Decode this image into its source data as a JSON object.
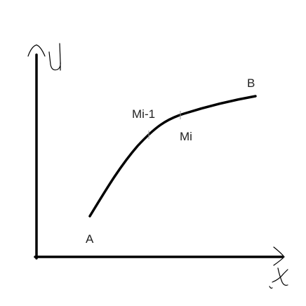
{
  "diagram": {
    "axes": {
      "x_label": "x",
      "y_label": "y"
    },
    "points": {
      "start": "A",
      "end": "B",
      "prev": "Mi-1",
      "current": "Mi"
    },
    "colors": {
      "ink": "#000000",
      "tick": "#9a9a9a",
      "text": "#222222"
    }
  }
}
